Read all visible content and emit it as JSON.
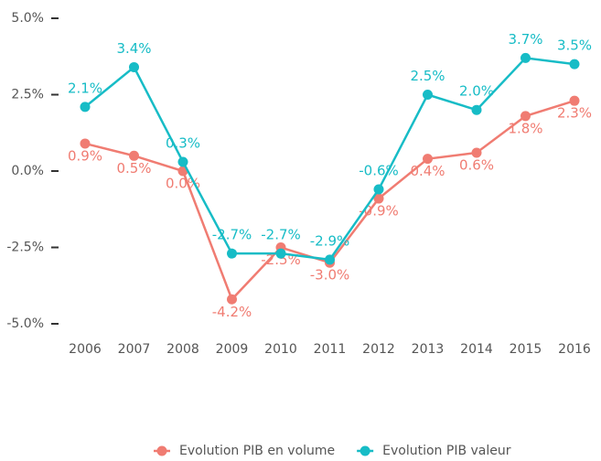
{
  "chart_data": {
    "type": "line",
    "categories": [
      "2006",
      "2007",
      "2008",
      "2009",
      "2010",
      "2011",
      "2012",
      "2013",
      "2014",
      "2015",
      "2016"
    ],
    "series": [
      {
        "name": "Evolution PIB en volume",
        "color": "#f07c72",
        "values": [
          0.9,
          0.5,
          0.0,
          -4.2,
          -2.5,
          -3.0,
          -0.9,
          0.4,
          0.6,
          1.8,
          2.3
        ],
        "value_labels": [
          "0.9%",
          "0.5%",
          "0.0%",
          "-4.2%",
          "-2.5%",
          "-3.0%",
          "-0.9%",
          "0.4%",
          "0.6%",
          "1.8%",
          "2.3%"
        ]
      },
      {
        "name": "Evolution PIB valeur",
        "color": "#17bcc6",
        "values": [
          2.1,
          3.4,
          0.3,
          -2.7,
          -2.7,
          -2.9,
          -0.6,
          2.5,
          2.0,
          3.7,
          3.5
        ],
        "value_labels": [
          "2.1%",
          "3.4%",
          "0.3%",
          "-2.7%",
          "-2.7%",
          "-2.9%",
          "-0.6%",
          "2.5%",
          "2.0%",
          "3.7%",
          "3.5%"
        ]
      }
    ],
    "ylim": [
      -5.0,
      5.0
    ],
    "yticks": [
      {
        "value": -5.0,
        "label": "-5.0%"
      },
      {
        "value": -2.5,
        "label": "-2.5%"
      },
      {
        "value": 0.0,
        "label": "0.0%"
      },
      {
        "value": 2.5,
        "label": "2.5%"
      },
      {
        "value": 5.0,
        "label": "5.0%"
      }
    ],
    "grid": false,
    "legend": "bottom"
  }
}
